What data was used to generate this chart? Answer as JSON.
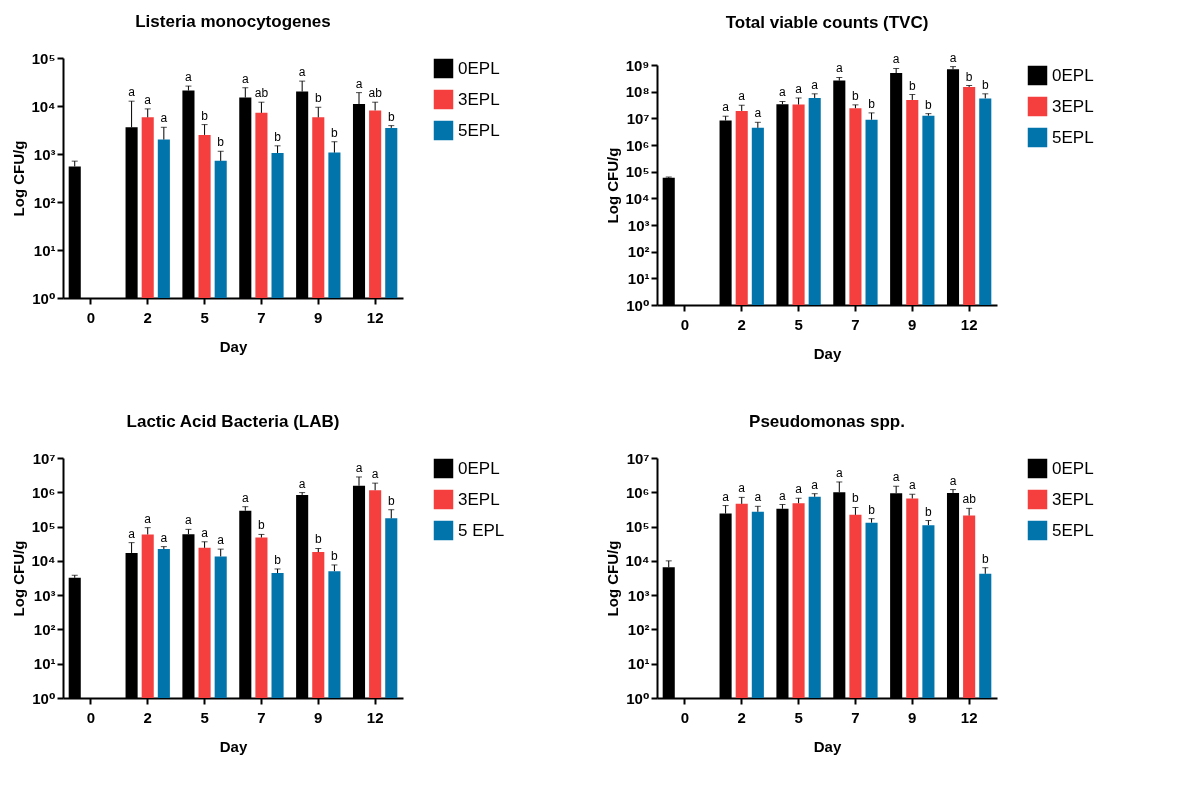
{
  "chart_data": [
    {
      "type": "bar",
      "title": "Listeria monocytogenes",
      "xlabel": "Day",
      "ylabel": "Log CFU/g",
      "categories": [
        "0",
        "2",
        "5",
        "7",
        "9",
        "12"
      ],
      "log": true,
      "ylim": [
        1,
        100000
      ],
      "yticks": [
        {
          "value": 1,
          "label": "10⁰"
        },
        {
          "value": 10,
          "label": "10¹"
        },
        {
          "value": 100,
          "label": "10²"
        },
        {
          "value": 1000,
          "label": "10³"
        },
        {
          "value": 10000,
          "label": "10⁴"
        },
        {
          "value": 100000,
          "label": "10⁵"
        }
      ],
      "legend": "right",
      "grid": false,
      "series": [
        {
          "name": "0EPL",
          "color": "#000000",
          "values": [
            550,
            3600,
            21000,
            15000,
            20000,
            11000
          ],
          "errors": [
            [
              550,
              710
            ],
            [
              3600,
              12600
            ],
            [
              21000,
              26000
            ],
            [
              15000,
              24000
            ],
            [
              20000,
              33000
            ],
            [
              11000,
              19000
            ]
          ],
          "value_labels": [
            null,
            "a",
            "a",
            "a",
            "a",
            "a"
          ]
        },
        {
          "name": "3EPL",
          "color": "#f53e3e",
          "values": [
            null,
            5800,
            2500,
            7200,
            5800,
            8100
          ],
          "errors": [
            null,
            [
              5800,
              8700
            ],
            [
              2500,
              4100
            ],
            [
              7200,
              12000
            ],
            [
              5800,
              9400
            ],
            [
              8100,
              12000
            ]
          ],
          "value_labels": [
            null,
            "a",
            "b",
            "ab",
            "b",
            "ab"
          ]
        },
        {
          "name": "5EPL",
          "color": "#0274ac",
          "values": [
            null,
            2000,
            720,
            1050,
            1070,
            3500
          ],
          "errors": [
            null,
            [
              2000,
              3600
            ],
            [
              720,
              1140
            ],
            [
              1050,
              1480
            ],
            [
              1070,
              1800
            ],
            [
              3500,
              3900
            ]
          ],
          "value_labels": [
            null,
            "a",
            "b",
            "b",
            "b",
            "b"
          ]
        }
      ]
    },
    {
      "type": "bar",
      "title": "Total viable counts (TVC)",
      "xlabel": "Day",
      "ylabel": "Log CFU/g",
      "categories": [
        "0",
        "2",
        "5",
        "7",
        "9",
        "12"
      ],
      "log": true,
      "ylim": [
        1,
        1000000000
      ],
      "yticks": [
        {
          "value": 1,
          "label": "10⁰"
        },
        {
          "value": 10,
          "label": "10¹"
        },
        {
          "value": 100,
          "label": "10²"
        },
        {
          "value": 1000,
          "label": "10³"
        },
        {
          "value": 10000,
          "label": "10⁴"
        },
        {
          "value": 100000,
          "label": "10⁵"
        },
        {
          "value": 1000000,
          "label": "10⁶"
        },
        {
          "value": 10000000,
          "label": "10⁷"
        },
        {
          "value": 100000000,
          "label": "10⁸"
        },
        {
          "value": 1000000000,
          "label": "10⁹"
        }
      ],
      "legend": "right",
      "grid": false,
      "series": [
        {
          "name": "0EPL",
          "color": "#000000",
          "values": [
            59000,
            8300000,
            34000000,
            260000000,
            500000000,
            690000000
          ],
          "errors": [
            [
              59000,
              63000
            ],
            [
              8300000,
              12000000
            ],
            [
              34000000,
              43000000
            ],
            [
              260000000,
              340000000
            ],
            [
              500000000,
              740000000
            ],
            [
              690000000,
              870000000
            ]
          ],
          "value_labels": [
            null,
            "a",
            "a",
            "a",
            "a",
            "a"
          ]
        },
        {
          "name": "3EPL",
          "color": "#f53e3e",
          "values": [
            null,
            19000000,
            33000000,
            24000000,
            49000000,
            150000000
          ],
          "errors": [
            null,
            [
              19000000,
              31000000
            ],
            [
              33000000,
              58000000
            ],
            [
              24000000,
              32000000
            ],
            [
              49000000,
              78000000
            ],
            [
              150000000,
              170000000
            ]
          ],
          "value_labels": [
            null,
            "a",
            "a",
            "b",
            "b",
            "b"
          ]
        },
        {
          "name": "5EPL",
          "color": "#0274ac",
          "values": [
            null,
            4400000,
            58000000,
            8900000,
            12600000,
            56000000
          ],
          "errors": [
            null,
            [
              4400000,
              7100000
            ],
            [
              58000000,
              83000000
            ],
            [
              8900000,
              16000000
            ],
            [
              12600000,
              15000000
            ],
            [
              56000000,
              83000000
            ]
          ],
          "value_labels": [
            null,
            "a",
            "a",
            "b",
            "b",
            "b"
          ]
        }
      ]
    },
    {
      "type": "bar",
      "title": "Lactic Acid Bacteria (LAB)",
      "xlabel": "Day",
      "ylabel": "Log CFU/g",
      "categories": [
        "0",
        "2",
        "5",
        "7",
        "9",
        "12"
      ],
      "log": true,
      "ylim": [
        1,
        10000000
      ],
      "yticks": [
        {
          "value": 1,
          "label": "10⁰"
        },
        {
          "value": 10,
          "label": "10¹"
        },
        {
          "value": 100,
          "label": "10²"
        },
        {
          "value": 1000,
          "label": "10³"
        },
        {
          "value": 10000,
          "label": "10⁴"
        },
        {
          "value": 100000,
          "label": "10⁵"
        },
        {
          "value": 1000000,
          "label": "10⁶"
        },
        {
          "value": 10000000,
          "label": "10⁷"
        }
      ],
      "legend": "right",
      "grid": false,
      "series": [
        {
          "name": "0EPL",
          "color": "#000000",
          "values": [
            3200,
            17000,
            60000,
            290000,
            840000,
            1550000
          ],
          "errors": [
            [
              3200,
              3800
            ],
            [
              17000,
              34000
            ],
            [
              60000,
              83000
            ],
            [
              290000,
              380000
            ],
            [
              840000,
              980000
            ],
            [
              1550000,
              2800000
            ]
          ],
          "value_labels": [
            null,
            "a",
            "a",
            "a",
            "a",
            "a"
          ]
        },
        {
          "name": "3EPL",
          "color": "#f53e3e",
          "values": [
            null,
            59000,
            24000,
            48000,
            18000,
            1150000
          ],
          "errors": [
            null,
            [
              59000,
              93000
            ],
            [
              24000,
              36000
            ],
            [
              48000,
              59000
            ],
            [
              18000,
              23000
            ],
            [
              1150000,
              1850000
            ]
          ],
          "value_labels": [
            null,
            "a",
            "a",
            "b",
            "b",
            "a"
          ]
        },
        {
          "name": "5 EPL",
          "color": "#0274ac",
          "values": [
            null,
            22000,
            13500,
            4400,
            5000,
            174000
          ],
          "errors": [
            null,
            [
              22000,
              26000
            ],
            [
              13500,
              22000
            ],
            [
              4400,
              5800
            ],
            [
              5000,
              7600
            ],
            [
              174000,
              310000
            ]
          ],
          "value_labels": [
            null,
            "a",
            "a",
            "b",
            "b",
            "b"
          ]
        }
      ]
    },
    {
      "type": "bar",
      "title": "Pseudomonas spp.",
      "xlabel": "Day",
      "ylabel": "Log CFU/g",
      "categories": [
        "0",
        "2",
        "5",
        "7",
        "9",
        "12"
      ],
      "log": true,
      "ylim": [
        1,
        10000000
      ],
      "yticks": [
        {
          "value": 1,
          "label": "10⁰"
        },
        {
          "value": 10,
          "label": "10¹"
        },
        {
          "value": 100,
          "label": "10²"
        },
        {
          "value": 1000,
          "label": "10³"
        },
        {
          "value": 10000,
          "label": "10⁴"
        },
        {
          "value": 100000,
          "label": "10⁵"
        },
        {
          "value": 1000000,
          "label": "10⁶"
        },
        {
          "value": 10000000,
          "label": "10⁷"
        }
      ],
      "legend": "right",
      "grid": false,
      "series": [
        {
          "name": "0EPL",
          "color": "#000000",
          "values": [
            6500,
            240000,
            330000,
            1000000,
            940000,
            960000
          ],
          "errors": [
            [
              6500,
              10000
            ],
            [
              240000,
              410000
            ],
            [
              330000,
              440000
            ],
            [
              1000000,
              2000000
            ],
            [
              940000,
              1500000
            ],
            [
              960000,
              1200000
            ]
          ],
          "value_labels": [
            null,
            "a",
            "a",
            "a",
            "a",
            "a"
          ]
        },
        {
          "name": "3EPL",
          "color": "#f53e3e",
          "values": [
            null,
            460000,
            480000,
            220000,
            660000,
            210000
          ],
          "errors": [
            null,
            [
              460000,
              710000
            ],
            [
              480000,
              670000
            ],
            [
              220000,
              360000
            ],
            [
              660000,
              870000
            ],
            [
              210000,
              340000
            ]
          ],
          "value_labels": [
            null,
            "a",
            "a",
            "b",
            "a",
            "ab"
          ]
        },
        {
          "name": "5EPL",
          "color": "#0274ac",
          "values": [
            null,
            270000,
            740000,
            130000,
            110000,
            4200
          ],
          "errors": [
            null,
            [
              270000,
              390000
            ],
            [
              740000,
              910000
            ],
            [
              130000,
              170000
            ],
            [
              110000,
              150000
            ],
            [
              4200,
              6300
            ]
          ],
          "value_labels": [
            null,
            "a",
            "a",
            "b",
            "b",
            "b"
          ]
        }
      ]
    }
  ]
}
